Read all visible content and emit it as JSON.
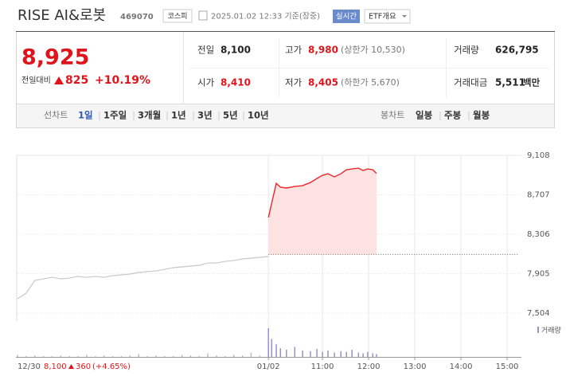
{
  "header": {
    "name": "RISE AI&로봇",
    "code": "469070",
    "market": "코스피",
    "time": "2025.01.02 12:33 기준(장중)",
    "realtime": "실시간",
    "overview": "ETF개요"
  },
  "quote": {
    "price": "8,925",
    "change_label": "전일대비",
    "change": "825",
    "change_pct": "+10.19%",
    "stats": [
      [
        {
          "label": "전일",
          "value": "8,100"
        },
        {
          "label": "고가",
          "value": "8,980",
          "note": "(상한가 10,530)"
        },
        {
          "label": "거래량",
          "value": "626,795"
        }
      ],
      [
        {
          "label": "시가",
          "value": "8,410"
        },
        {
          "label": "저가",
          "value": "8,405",
          "note": "(하한가 5,670)"
        },
        {
          "label": "거래대금",
          "value": "5,511",
          "unit": "백만"
        }
      ]
    ]
  },
  "tabs": {
    "line_label": "선차트",
    "line_periods": [
      "1일",
      "1주일",
      "3개월",
      "1년",
      "3년",
      "5년",
      "10년"
    ],
    "candle_label": "봉차트",
    "candle_periods": [
      "일봉",
      "주봉",
      "월봉"
    ]
  },
  "chart_data": {
    "type": "line",
    "xlim": [
      4.36,
      15.31
    ],
    "ylim": [
      7504,
      9108
    ],
    "yticks": [
      {
        "value": 7504,
        "label": "7,504"
      },
      {
        "value": 7905,
        "label": "7,905"
      },
      {
        "value": 8306,
        "label": "8,306"
      },
      {
        "value": 8707,
        "label": "8,707"
      },
      {
        "value": 9108,
        "label": "9,108"
      }
    ],
    "xticks": [
      {
        "value": 9.83,
        "label": "01/02"
      },
      {
        "value": 11,
        "label": "11:00"
      },
      {
        "value": 12,
        "label": "12:00"
      },
      {
        "value": 13,
        "label": "13:00"
      },
      {
        "value": 14,
        "label": "14:00"
      },
      {
        "value": 15,
        "label": "15:00"
      }
    ],
    "baseline": 8100,
    "series": [
      {
        "color": "#c8c8c8",
        "values": [
          7650,
          7706,
          7836,
          7852,
          7868,
          7852,
          7860,
          7877,
          7868,
          7877,
          7868,
          7885,
          7893,
          7901,
          7917,
          7925,
          7933,
          7949,
          7966,
          7974,
          7982,
          7990,
          8014,
          8014,
          8030,
          8038,
          8055,
          8063,
          8071,
          8079
        ],
        "volume": [
          3,
          1,
          2,
          1,
          1,
          2,
          1,
          1,
          3,
          1,
          2,
          1,
          1,
          2,
          4,
          1,
          2,
          1,
          1,
          3,
          2,
          1,
          5,
          2,
          1,
          3,
          2,
          6,
          2,
          3
        ]
      },
      {
        "color": "#e8262b",
        "x": [
          9.83,
          9.9,
          10,
          10.09,
          10.22,
          10.4,
          10.57,
          10.74,
          10.88,
          11,
          11.12,
          11.26,
          11.4,
          11.52,
          11.64,
          11.78,
          11.88,
          11.98,
          12.09,
          12.17
        ],
        "values": [
          8476,
          8622,
          8824,
          8784,
          8776,
          8792,
          8800,
          8832,
          8873,
          8905,
          8921,
          8889,
          8921,
          8962,
          8970,
          8978,
          8954,
          8970,
          8962,
          8925
        ],
        "volume": [
          40,
          25,
          18,
          12,
          10,
          14,
          9,
          8,
          11,
          7,
          9,
          6,
          8,
          7,
          10,
          6,
          5,
          7,
          5,
          4
        ]
      }
    ],
    "volume_label": "거래량",
    "volume_colors": [
      "#bdbdbd",
      "#9b8fd0"
    ],
    "prev_day": {
      "date": "12/30",
      "close": "8,100",
      "change": "360",
      "change_pct": "(+4.65%)"
    }
  }
}
